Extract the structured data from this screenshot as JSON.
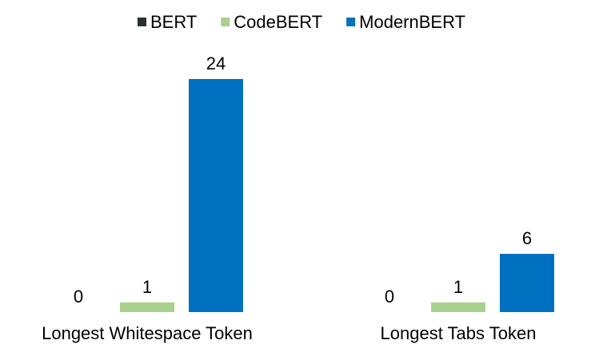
{
  "chart_data": {
    "type": "bar",
    "categories": [
      "Longest Whitespace Token",
      "Longest Tabs Token"
    ],
    "series": [
      {
        "name": "BERT",
        "color": "#2b2f38",
        "values": [
          0,
          0
        ]
      },
      {
        "name": "CodeBERT",
        "color": "#a9d18e",
        "values": [
          1,
          1
        ]
      },
      {
        "name": "ModernBERT",
        "color": "#0070c0",
        "values": [
          24,
          6
        ]
      }
    ],
    "ylim": [
      0,
      24
    ],
    "grid": false,
    "legend_position": "top-center"
  }
}
